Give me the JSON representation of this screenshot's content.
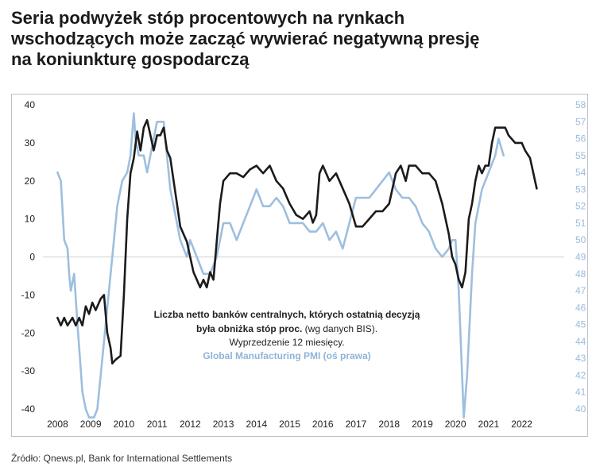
{
  "header": {
    "title_line1": "Seria podwyżek stóp procentowych na rynkach",
    "title_line2": "wschodzących może zacząć wywierać negatywną presję",
    "title_line3": "na koniunkturę gospodarczą"
  },
  "source": "Źródło: Qnews.pl, Bank for International Settlements",
  "chart_data": {
    "type": "line",
    "title": "",
    "xlabel": "",
    "ylabel": "",
    "x_ticks": [
      "2008",
      "2009",
      "2010",
      "2011",
      "2012",
      "2013",
      "2014",
      "2015",
      "2016",
      "2017",
      "2018",
      "2019",
      "2020",
      "2021",
      "2022"
    ],
    "y_left": {
      "ticks": [
        40,
        30,
        20,
        10,
        0,
        -10,
        -20,
        -30,
        -40
      ],
      "lim": [
        -40,
        40
      ]
    },
    "y_right": {
      "ticks": [
        58,
        57,
        56,
        55,
        54,
        53,
        52,
        51,
        50,
        49,
        48,
        47,
        46,
        45,
        44,
        43,
        42,
        41,
        40
      ],
      "lim": [
        40,
        58
      ]
    },
    "grid": false,
    "zero_line": true,
    "annotations": {
      "line1": "Liczba netto banków centralnych, których ostatnią decyzją",
      "line2_bold": "była obniżka stóp proc.",
      "line2_rest": "(wg danych BIS).",
      "line3": "Wyprzedzenie 12 miesięcy.",
      "line4": "Global Manufacturing PMI (oś prawa)"
    },
    "series": [
      {
        "name": "Liczba netto banków centralnych, których ostatnią decyzją była obniżka stóp proc. (wg danych BIS). Wyprzedzenie 12 miesięcy.",
        "color": "#1b1b1b",
        "axis": "left",
        "points": [
          [
            2008.0,
            -16
          ],
          [
            2008.1,
            -18
          ],
          [
            2008.2,
            -16
          ],
          [
            2008.3,
            -18
          ],
          [
            2008.45,
            -16
          ],
          [
            2008.55,
            -18
          ],
          [
            2008.65,
            -16
          ],
          [
            2008.75,
            -18
          ],
          [
            2008.85,
            -13
          ],
          [
            2008.95,
            -15
          ],
          [
            2009.05,
            -12
          ],
          [
            2009.15,
            -14
          ],
          [
            2009.3,
            -11
          ],
          [
            2009.4,
            -10
          ],
          [
            2009.5,
            -20
          ],
          [
            2009.6,
            -24
          ],
          [
            2009.65,
            -28
          ],
          [
            2009.75,
            -27
          ],
          [
            2009.9,
            -26
          ],
          [
            2010.0,
            -10
          ],
          [
            2010.1,
            10
          ],
          [
            2010.2,
            22
          ],
          [
            2010.3,
            26
          ],
          [
            2010.4,
            33
          ],
          [
            2010.5,
            28
          ],
          [
            2010.6,
            34
          ],
          [
            2010.7,
            36
          ],
          [
            2010.8,
            32
          ],
          [
            2010.9,
            28
          ],
          [
            2011.0,
            32
          ],
          [
            2011.1,
            32
          ],
          [
            2011.2,
            34
          ],
          [
            2011.3,
            28
          ],
          [
            2011.4,
            26
          ],
          [
            2011.5,
            20
          ],
          [
            2011.6,
            14
          ],
          [
            2011.7,
            8
          ],
          [
            2011.8,
            6
          ],
          [
            2011.9,
            4
          ],
          [
            2012.0,
            0
          ],
          [
            2012.1,
            -4
          ],
          [
            2012.2,
            -6
          ],
          [
            2012.3,
            -8
          ],
          [
            2012.4,
            -6
          ],
          [
            2012.5,
            -8
          ],
          [
            2012.6,
            -4
          ],
          [
            2012.7,
            -6
          ],
          [
            2012.8,
            4
          ],
          [
            2012.9,
            14
          ],
          [
            2013.0,
            20
          ],
          [
            2013.2,
            22
          ],
          [
            2013.4,
            22
          ],
          [
            2013.6,
            21
          ],
          [
            2013.8,
            23
          ],
          [
            2014.0,
            24
          ],
          [
            2014.2,
            22
          ],
          [
            2014.4,
            24
          ],
          [
            2014.6,
            20
          ],
          [
            2014.8,
            18
          ],
          [
            2015.0,
            14
          ],
          [
            2015.2,
            11
          ],
          [
            2015.4,
            10
          ],
          [
            2015.6,
            12
          ],
          [
            2015.7,
            9
          ],
          [
            2015.8,
            11
          ],
          [
            2015.9,
            22
          ],
          [
            2016.0,
            24
          ],
          [
            2016.2,
            20
          ],
          [
            2016.4,
            22
          ],
          [
            2016.6,
            18
          ],
          [
            2016.8,
            14
          ],
          [
            2017.0,
            8
          ],
          [
            2017.2,
            8
          ],
          [
            2017.4,
            10
          ],
          [
            2017.6,
            12
          ],
          [
            2017.8,
            12
          ],
          [
            2018.0,
            14
          ],
          [
            2018.1,
            18
          ],
          [
            2018.2,
            22
          ],
          [
            2018.35,
            24
          ],
          [
            2018.5,
            20
          ],
          [
            2018.6,
            24
          ],
          [
            2018.8,
            24
          ],
          [
            2019.0,
            22
          ],
          [
            2019.2,
            22
          ],
          [
            2019.4,
            20
          ],
          [
            2019.6,
            14
          ],
          [
            2019.8,
            6
          ],
          [
            2019.9,
            0
          ],
          [
            2020.0,
            -2
          ],
          [
            2020.1,
            -6
          ],
          [
            2020.2,
            -8
          ],
          [
            2020.3,
            -4
          ],
          [
            2020.4,
            10
          ],
          [
            2020.5,
            14
          ],
          [
            2020.6,
            20
          ],
          [
            2020.7,
            24
          ],
          [
            2020.8,
            22
          ],
          [
            2020.9,
            24
          ],
          [
            2021.0,
            24
          ],
          [
            2021.1,
            30
          ],
          [
            2021.2,
            34
          ],
          [
            2021.3,
            34
          ],
          [
            2021.5,
            34
          ],
          [
            2021.6,
            32
          ],
          [
            2021.8,
            30
          ],
          [
            2022.0,
            30
          ],
          [
            2022.1,
            28
          ],
          [
            2022.25,
            26
          ],
          [
            2022.35,
            22
          ],
          [
            2022.45,
            18
          ]
        ]
      },
      {
        "name": "Global Manufacturing PMI (oś prawa)",
        "color": "#9dbfdf",
        "axis": "right",
        "points": [
          [
            2008.0,
            54
          ],
          [
            2008.1,
            53.5
          ],
          [
            2008.2,
            50
          ],
          [
            2008.3,
            49.5
          ],
          [
            2008.35,
            48
          ],
          [
            2008.4,
            47
          ],
          [
            2008.5,
            48
          ],
          [
            2008.6,
            45
          ],
          [
            2008.75,
            41
          ],
          [
            2008.85,
            40
          ],
          [
            2008.95,
            39.5
          ],
          [
            2009.1,
            39.5
          ],
          [
            2009.2,
            40
          ],
          [
            2009.3,
            42
          ],
          [
            2009.4,
            44
          ],
          [
            2009.5,
            46
          ],
          [
            2009.6,
            48
          ],
          [
            2009.7,
            50
          ],
          [
            2009.8,
            52
          ],
          [
            2009.95,
            53.5
          ],
          [
            2010.1,
            54
          ],
          [
            2010.2,
            55
          ],
          [
            2010.3,
            57.5
          ],
          [
            2010.35,
            56
          ],
          [
            2010.45,
            55
          ],
          [
            2010.6,
            55
          ],
          [
            2010.7,
            54
          ],
          [
            2010.8,
            55
          ],
          [
            2010.9,
            56
          ],
          [
            2011.0,
            57
          ],
          [
            2011.1,
            57
          ],
          [
            2011.2,
            57
          ],
          [
            2011.3,
            55
          ],
          [
            2011.4,
            53
          ],
          [
            2011.5,
            52
          ],
          [
            2011.6,
            51
          ],
          [
            2011.7,
            50
          ],
          [
            2011.8,
            49.5
          ],
          [
            2011.9,
            49
          ],
          [
            2012.0,
            50
          ],
          [
            2012.2,
            49
          ],
          [
            2012.4,
            48
          ],
          [
            2012.6,
            48
          ],
          [
            2012.8,
            49
          ],
          [
            2013.0,
            51
          ],
          [
            2013.2,
            51
          ],
          [
            2013.4,
            50
          ],
          [
            2013.6,
            51
          ],
          [
            2013.8,
            52
          ],
          [
            2014.0,
            53
          ],
          [
            2014.2,
            52
          ],
          [
            2014.4,
            52
          ],
          [
            2014.6,
            52.5
          ],
          [
            2014.8,
            52
          ],
          [
            2015.0,
            51
          ],
          [
            2015.2,
            51
          ],
          [
            2015.4,
            51
          ],
          [
            2015.6,
            50.5
          ],
          [
            2015.8,
            50.5
          ],
          [
            2016.0,
            51
          ],
          [
            2016.2,
            50
          ],
          [
            2016.4,
            50.5
          ],
          [
            2016.6,
            49.5
          ],
          [
            2016.8,
            51
          ],
          [
            2017.0,
            52.5
          ],
          [
            2017.2,
            52.5
          ],
          [
            2017.4,
            52.5
          ],
          [
            2017.6,
            53
          ],
          [
            2017.8,
            53.5
          ],
          [
            2018.0,
            54
          ],
          [
            2018.2,
            53
          ],
          [
            2018.4,
            52.5
          ],
          [
            2018.6,
            52.5
          ],
          [
            2018.8,
            52
          ],
          [
            2019.0,
            51
          ],
          [
            2019.2,
            50.5
          ],
          [
            2019.4,
            49.5
          ],
          [
            2019.6,
            49
          ],
          [
            2019.8,
            49.5
          ],
          [
            2019.9,
            50
          ],
          [
            2020.0,
            50
          ],
          [
            2020.1,
            47
          ],
          [
            2020.2,
            42
          ],
          [
            2020.25,
            39.5
          ],
          [
            2020.35,
            42
          ],
          [
            2020.5,
            48
          ],
          [
            2020.6,
            51
          ],
          [
            2020.8,
            53
          ],
          [
            2021.0,
            54
          ],
          [
            2021.2,
            55
          ],
          [
            2021.3,
            56
          ],
          [
            2021.45,
            55
          ]
        ]
      }
    ]
  }
}
